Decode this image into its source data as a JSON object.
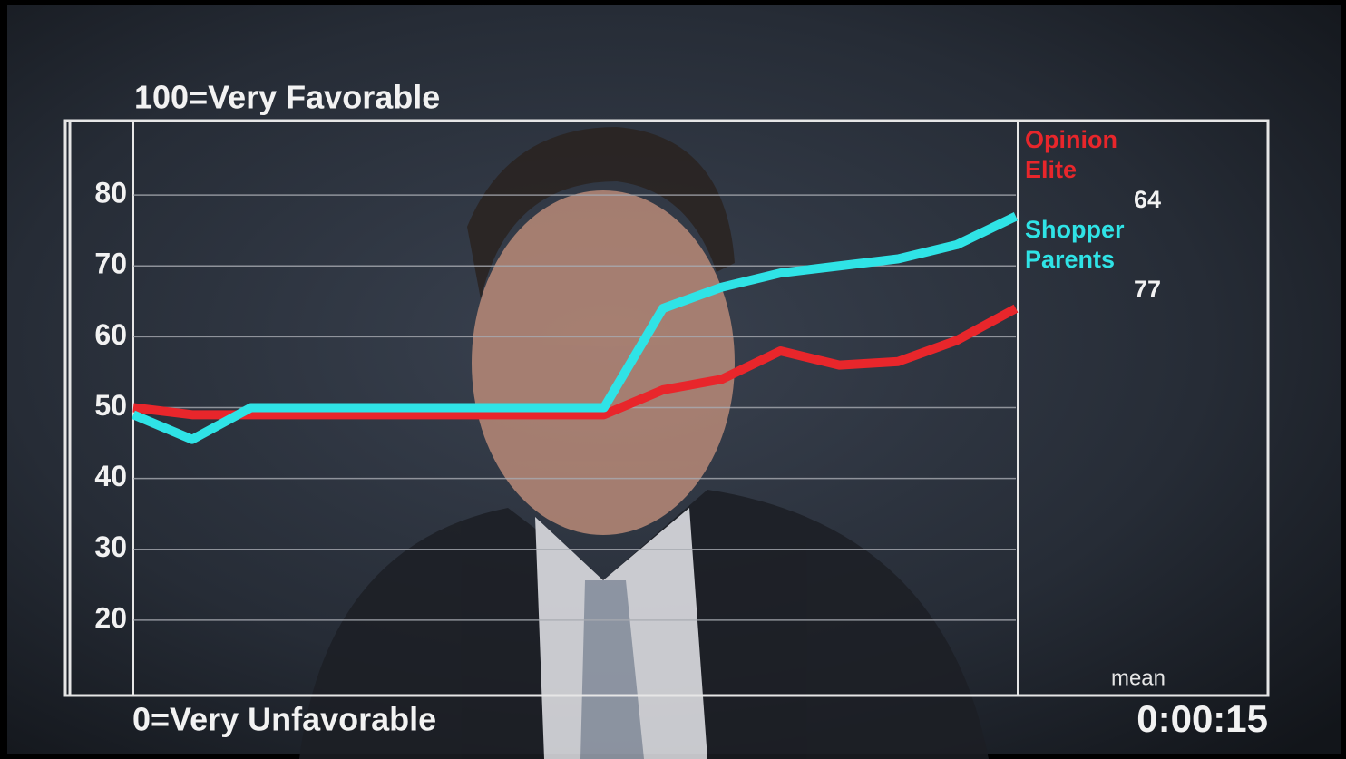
{
  "chart_data": {
    "type": "line",
    "top_label": "100=Very Favorable",
    "bottom_label": "0=Very Unfavorable",
    "legend_note": "mean",
    "timer": "0:00:15",
    "categories": [
      null,
      null,
      null,
      null,
      null,
      null,
      null,
      null,
      null,
      null,
      null,
      null,
      null,
      null,
      null,
      null
    ],
    "series": [
      {
        "name": "Opinion Elite",
        "color": "#e8262b",
        "values": [
          50,
          49,
          49,
          49,
          49,
          49,
          49,
          49,
          49,
          52.5,
          54,
          58,
          56,
          56.5,
          59.5,
          64
        ]
      },
      {
        "name": "Shopper Parents",
        "color": "#2fe3e6",
        "values": [
          49,
          45.5,
          50,
          50,
          50,
          50,
          50,
          50,
          50,
          64,
          67,
          69,
          70,
          71,
          73,
          77
        ]
      }
    ],
    "ylim": [
      10,
      90
    ],
    "yticks": [
      20,
      30,
      40,
      50,
      60,
      70,
      80
    ],
    "grid": true
  }
}
